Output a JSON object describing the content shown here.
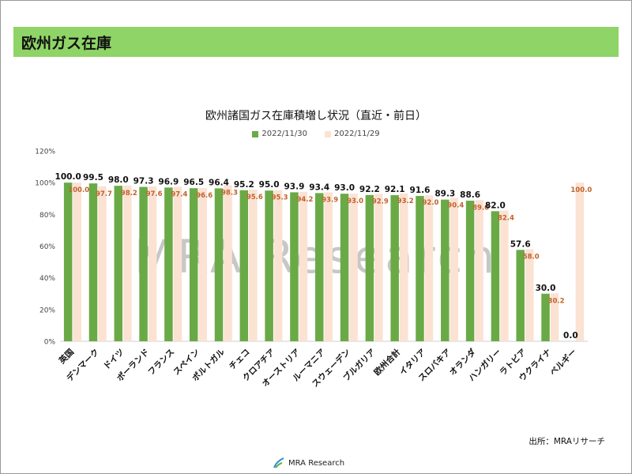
{
  "header": {
    "title": "欧州ガス在庫"
  },
  "watermark": "MRA Research",
  "source": "出所：MRAリサーチ",
  "footer_logo_text": "MRA Research",
  "colors": {
    "current": "#6aaa46",
    "previous": "#fbe2d3",
    "prev_label": "#c0622a",
    "header_bg": "#8fd466"
  },
  "chart_data": {
    "type": "bar",
    "title": "欧州諸国ガス在庫積増し状況（直近・前日）",
    "ylim": [
      0,
      120
    ],
    "yticks": [
      "0%",
      "20%",
      "40%",
      "60%",
      "80%",
      "100%",
      "120%"
    ],
    "legend_position": "top",
    "grid": false,
    "categories": [
      "英国",
      "デンマーク",
      "ドイツ",
      "ポーランド",
      "フランス",
      "スペイン",
      "ポルトガル",
      "チェコ",
      "クロアチア",
      "オーストリア",
      "ルーマニア",
      "スウェーデン",
      "ブルガリア",
      "欧州合計",
      "イタリア",
      "スロバキア",
      "オランダ",
      "ハンガリー",
      "ラトビア",
      "ウクライナ",
      "ベルギー"
    ],
    "series": [
      {
        "name": "2022/11/30",
        "values": [
          100.0,
          99.5,
          98.0,
          97.3,
          96.9,
          96.5,
          96.4,
          95.2,
          95.0,
          93.9,
          93.4,
          93.0,
          92.2,
          92.1,
          91.6,
          89.3,
          88.6,
          82.0,
          57.6,
          30.0,
          0.0
        ],
        "labels": [
          "100.0",
          "99.5",
          "98.0",
          "97.3",
          "96.9",
          "96.5",
          "96.4",
          "95.2",
          "95.0",
          "93.9",
          "93.4",
          "93.0",
          "92.2",
          "92.1",
          "91.6",
          "89.3",
          "88.6",
          "82.0",
          "57.6",
          "30.0",
          "0.0"
        ]
      },
      {
        "name": "2022/11/29",
        "values": [
          100.0,
          97.7,
          98.2,
          97.6,
          97.4,
          96.6,
          98.3,
          95.6,
          95.3,
          94.2,
          93.9,
          93.0,
          92.9,
          93.2,
          92.0,
          90.4,
          89.0,
          82.4,
          58.0,
          30.2,
          100.0
        ],
        "labels": [
          "100.0",
          "97.7",
          "98.2",
          "97.6",
          "97.4",
          "96.6",
          "98.3",
          "95.6",
          "95.3",
          "94.2",
          "93.9",
          "93.0",
          "92.9",
          "93.2",
          "92.0",
          "90.4",
          "89.0",
          "82.4",
          "58.0",
          "30.2",
          "100.0"
        ]
      }
    ]
  }
}
